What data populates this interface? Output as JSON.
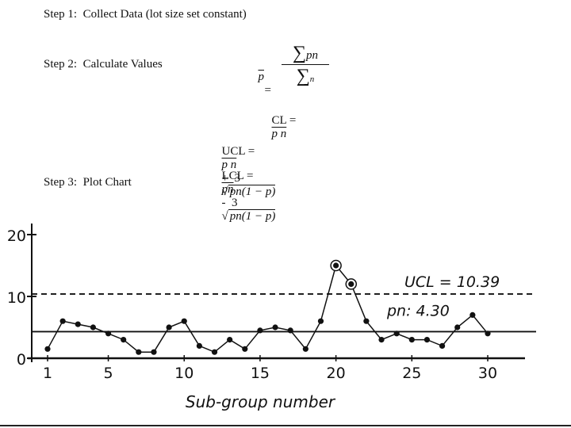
{
  "steps": {
    "step1": "Step 1:  Collect Data (lot size set constant)",
    "step2": "Step 2:  Calculate Values",
    "step3": "Step 3:  Plot Chart"
  },
  "formulas": {
    "pbar_lhs": "p",
    "eq": "=",
    "sum": "∑",
    "num": "pn",
    "den": "n",
    "cl_label": "CL =",
    "cl_rhs": "p n",
    "ucl_label": "UCL =",
    "ucl_rhs_a": "p n",
    "ucl_rhs_b": "+  3",
    "ucl_sqrt": "pn(1 − p)",
    "lcl_label": "LCL =",
    "lcl_rhs_a": "pn",
    "lcl_rhs_b": "-  3",
    "lcl_sqrt": "pn(1 − p)"
  },
  "chart_data": {
    "type": "line",
    "xlabel": "Sub-group number",
    "ylabel": "",
    "xlim": [
      0,
      33
    ],
    "ylim": [
      0,
      21
    ],
    "x_ticks": [
      1,
      5,
      10,
      15,
      20,
      25,
      30
    ],
    "y_ticks": [
      0,
      10,
      20
    ],
    "control_lines": [
      {
        "name": "UCL",
        "label": "UCL  =  10.39",
        "value": 10.39,
        "style": "dashed"
      },
      {
        "name": "CL",
        "label": "pn: 4.30",
        "value": 4.3,
        "style": "solid"
      }
    ],
    "series": [
      {
        "x": [
          1,
          2,
          3,
          4,
          5,
          6,
          7,
          8,
          9,
          10,
          11,
          12,
          13,
          14,
          15,
          16,
          17,
          18,
          19,
          20,
          21,
          22,
          23,
          24,
          25,
          26,
          27,
          28,
          29,
          30
        ],
        "values": [
          1.5,
          6,
          5.5,
          5,
          4,
          3,
          1,
          1,
          5,
          6,
          2,
          1,
          3,
          1.5,
          4.5,
          5,
          4.5,
          1.5,
          6,
          15,
          12,
          6,
          3,
          4,
          3,
          3,
          2,
          5,
          7,
          4
        ]
      }
    ],
    "highlighted_points": [
      20,
      21
    ]
  }
}
